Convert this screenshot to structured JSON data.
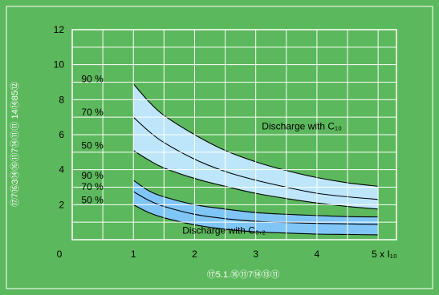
{
  "chart_data": {
    "type": "area",
    "title": "",
    "xlabel": "⑰5.1.⑯⑪7⑭⑬⑪",
    "ylabel": "⑰7⑯3⑭⑯⑪7⑭⑪⑪ 14⑭85⑫",
    "x_tick_labels": [
      "0",
      "1",
      "2",
      "3",
      "4",
      "5 x I₁₀"
    ],
    "y_tick_labels": [
      "2",
      "4",
      "6",
      "8",
      "10",
      "12"
    ],
    "xlim": [
      0,
      5.3
    ],
    "ylim": [
      0,
      12
    ],
    "grid": true,
    "colors": {
      "background": "#5cb85c",
      "plot": "#5cb85c",
      "band_c10": "#bde6fb",
      "band_c02": "#7fc6f7",
      "curve": "#000000",
      "grid": "#ffffff",
      "text": "#000000",
      "xlabel_text": "#ffffff",
      "ylabel_text": "#ffffff"
    },
    "bands": [
      {
        "name": "Discharge with C₁₀",
        "fill": "band_c10",
        "upper_label": "90 %",
        "lower_label": "50 %",
        "x": [
          1,
          1.25,
          1.5,
          2,
          2.5,
          3,
          3.5,
          4,
          4.5,
          5
        ],
        "upper": [
          8.9,
          7.9,
          7.1,
          6.0,
          5.1,
          4.45,
          3.95,
          3.55,
          3.25,
          3.05
        ],
        "lower": [
          5.1,
          4.55,
          4.1,
          3.5,
          3.05,
          2.65,
          2.35,
          2.1,
          1.9,
          1.75
        ]
      },
      {
        "name": "Discharge with C₀.₂",
        "fill": "band_c02",
        "upper_label": "90 %",
        "lower_label": "50 %",
        "x": [
          1,
          1.25,
          1.5,
          2,
          2.5,
          3,
          3.5,
          4,
          4.5,
          5
        ],
        "upper": [
          3.4,
          2.8,
          2.45,
          2.0,
          1.75,
          1.55,
          1.45,
          1.38,
          1.32,
          1.3
        ],
        "lower": [
          2.0,
          1.55,
          1.25,
          0.85,
          0.6,
          0.45,
          0.38,
          0.32,
          0.3,
          0.28
        ]
      }
    ],
    "middle_curves": [
      {
        "label": "70 %",
        "x": [
          1,
          1.25,
          1.5,
          2,
          2.5,
          3,
          3.5,
          4,
          4.5,
          5
        ],
        "y": [
          7.0,
          6.2,
          5.55,
          4.6,
          3.9,
          3.4,
          3.0,
          2.65,
          2.45,
          2.3
        ]
      },
      {
        "label": "70 %",
        "x": [
          1,
          1.25,
          1.5,
          2,
          2.5,
          3,
          3.5,
          4,
          4.5,
          5
        ],
        "y": [
          2.75,
          2.25,
          1.9,
          1.45,
          1.2,
          1.05,
          0.98,
          0.93,
          0.9,
          0.88
        ]
      }
    ],
    "annotations": [
      {
        "text": "Discharge with C₁₀",
        "x": 3.1,
        "y": 6.3
      },
      {
        "text": "Discharge with C₀.₂",
        "x": 1.8,
        "y": 0.35
      }
    ]
  }
}
